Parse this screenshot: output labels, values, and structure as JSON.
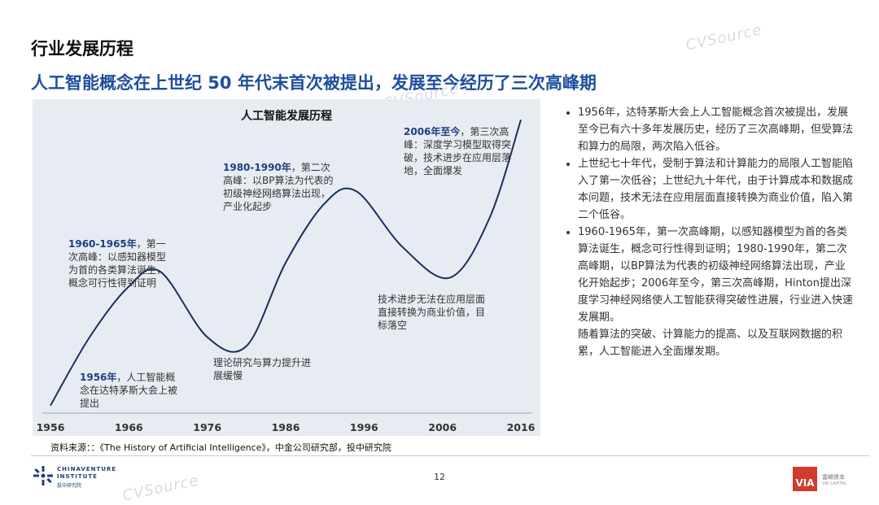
{
  "section_title": "行业发展历程",
  "headline": "人工智能概念在上世纪 50 年代末首次被提出，发展至今经历了三次高峰期",
  "watermark_text": "CVSource",
  "chart_data": {
    "type": "line",
    "title": "人工智能发展历程",
    "x_ticks": [
      "1956",
      "1966",
      "1976",
      "1986",
      "1996",
      "2006",
      "2016"
    ],
    "x": [
      1956,
      1961,
      1966,
      1970,
      1976,
      1981,
      1986,
      1991,
      1995,
      2001,
      2007,
      2012,
      2016
    ],
    "values": [
      0.02,
      0.25,
      0.42,
      0.47,
      0.25,
      0.22,
      0.5,
      0.7,
      0.74,
      0.55,
      0.45,
      0.65,
      0.98
    ],
    "annotations": [
      {
        "title": "1956年",
        "text": "，人工智能概念在达特茅斯大会上被提出"
      },
      {
        "title": "1960-1965年",
        "text": "，第一次高峰：以感知器模型为首的各类算法诞生，概念可行性得到证明"
      },
      {
        "title": "",
        "text": "理论研究与算力提升进展缓慢"
      },
      {
        "title": "1980-1990年",
        "text": "，第二次高峰：以BP算法为代表的初级神经网络算法出现，产业化起步"
      },
      {
        "title": "",
        "text": "技术进步无法在应用层面直接转换为商业价值，目标落空"
      },
      {
        "title": "2006年至今",
        "text": "，第三次高峰：深度学习模型取得突破，技术进步在应用层落地，全面爆发"
      }
    ],
    "line_color": "#1a2f5a"
  },
  "bullets": [
    "1956年，达特茅斯大会上人工智能概念首次被提出，发展至今已有六十多年发展历史，经历了三次高峰期，但受算法和算力的局限，两次陷入低谷。",
    "上世纪七十年代，受制于算法和计算能力的局限人工智能陷入了第一次低谷；上世纪九十年代，由于计算成本和数据成本问题，技术无法在应用层面直接转换为商业价值，陷入第二个低谷。",
    "1960-1965年，第一次高峰期，以感知器模型为首的各类算法诞生，概念可行性得到证明；1980-1990年，第二次高峰期，以BP算法为代表的初级神经网络算法出现，产业化开始起步；2006年至今，第三次高峰期，Hinton提出深度学习神经网络使人工智能获得突破性进展，行业进入快速发展期。"
  ],
  "bullet_tail": "随着算法的突破、计算能力的提高、以及互联网数据的积累，人工智能进入全面爆发期。",
  "source": "资料来源：：《The History of Artificial Intelligence》，中金公司研究部，投中研究院",
  "page_number": "12",
  "logo_left": {
    "line1": "CHINAVENTURE",
    "line2": "INSTITUTE",
    "line3": "投中研究院"
  },
  "logo_right": {
    "mark": "VIA",
    "line1": "雷卿资本",
    "line2": "VIA CAPITAL"
  }
}
